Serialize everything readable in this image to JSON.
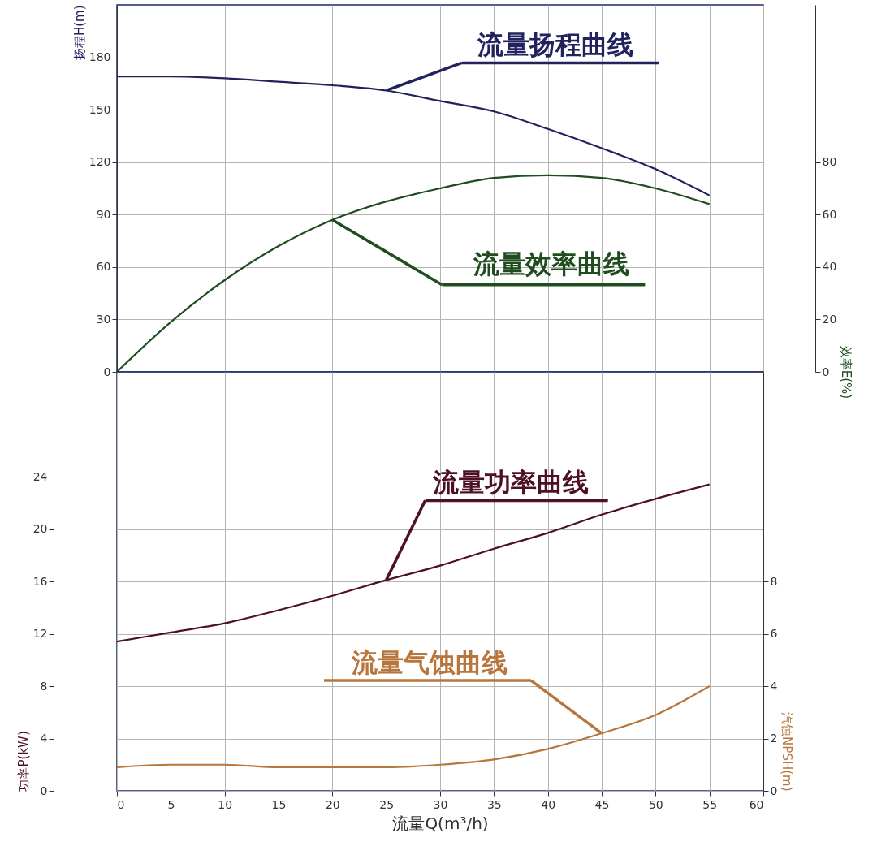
{
  "chart_data": [
    {
      "type": "line",
      "x": [
        0,
        5,
        10,
        15,
        20,
        25,
        30,
        35,
        40,
        45,
        50,
        55
      ],
      "xlim": [
        0,
        60
      ],
      "xticks": [
        0,
        5,
        10,
        15,
        20,
        25,
        30,
        35,
        40,
        45,
        50,
        55,
        60
      ],
      "ylim": [
        0,
        210
      ],
      "yticks": [
        0,
        30,
        60,
        90,
        120,
        150,
        180
      ],
      "y2lim": [
        0,
        140
      ],
      "y2ticks": [
        0,
        20,
        40,
        60,
        80
      ],
      "ylabel": "扬程H(m)",
      "y2label": "效率E(%)",
      "grid": true,
      "tick_labels": "y",
      "series": [
        {
          "name": "流量扬程曲线",
          "color": "#22225e",
          "values": [
            169,
            169,
            168,
            166,
            164,
            161,
            155,
            149,
            139,
            128,
            116,
            101
          ]
        },
        {
          "name": "流量效率曲线",
          "color": "#1f4d1f",
          "axis": "y2",
          "values": [
            0,
            19,
            35,
            48,
            58,
            65,
            70,
            74,
            75,
            74,
            70,
            64
          ]
        }
      ]
    },
    {
      "type": "line",
      "x": [
        0,
        5,
        10,
        15,
        20,
        25,
        30,
        35,
        40,
        45,
        50,
        55
      ],
      "xlim": [
        0,
        60
      ],
      "xticks": [
        0,
        5,
        10,
        15,
        20,
        25,
        30,
        35,
        40,
        45,
        50,
        55,
        60
      ],
      "ylim": [
        0,
        32
      ],
      "yticks": [
        0,
        4,
        8,
        12,
        16,
        20,
        24,
        {
          "value": 28,
          "label": null
        }
      ],
      "y2lim": [
        0,
        16
      ],
      "y2ticks": [
        0,
        2,
        4,
        6,
        8
      ],
      "xlabel": "流量Q(m³/h)",
      "ylabel": "功率P(kW)",
      "y2label": "汽蚀NPSH(m)",
      "grid": true,
      "series": [
        {
          "name": "流量功率曲线",
          "color": "#4d1024",
          "values": [
            11.4,
            12.1,
            12.8,
            13.8,
            14.9,
            16.1,
            17.2,
            18.5,
            19.7,
            21.1,
            22.3,
            23.4
          ]
        },
        {
          "name": "流量气蚀曲线",
          "color": "#b8763c",
          "axis": "y2",
          "values": [
            0.9,
            1.0,
            1.0,
            0.9,
            0.9,
            0.9,
            1.0,
            1.2,
            1.6,
            2.2,
            2.9,
            4.0
          ]
        }
      ]
    }
  ]
}
